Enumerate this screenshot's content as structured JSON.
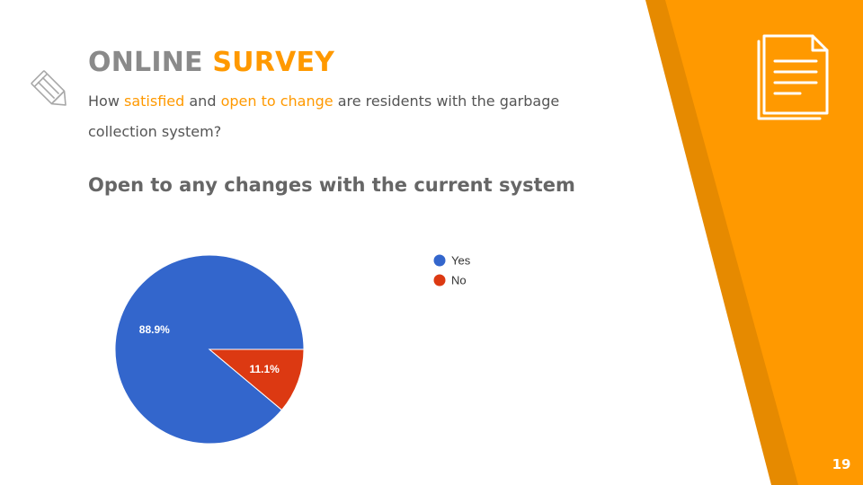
{
  "header": {
    "title_word1": "ONLINE",
    "title_word2": "SURVEY",
    "subtitle_part1": "How ",
    "subtitle_hl1": "satisfied",
    "subtitle_part2": " and ",
    "subtitle_hl2": "open to change",
    "subtitle_part3": " are residents with the garbage collection system?"
  },
  "icons": {
    "left": "pencil-icon",
    "right": "document-icon"
  },
  "colors": {
    "accent": "#ff9900",
    "accent_dark": "#e68a00",
    "title_gray": "#8a8a8a",
    "yes": "#3366cc",
    "no": "#dc3912"
  },
  "chart_data": {
    "type": "pie",
    "title": "Open to any changes with the current system",
    "series": [
      {
        "name": "Yes",
        "value": 88.9,
        "label": "88.9%",
        "color": "#3366cc"
      },
      {
        "name": "No",
        "value": 11.1,
        "label": "11.1%",
        "color": "#dc3912"
      }
    ],
    "legend_position": "right"
  },
  "page_number": "19"
}
